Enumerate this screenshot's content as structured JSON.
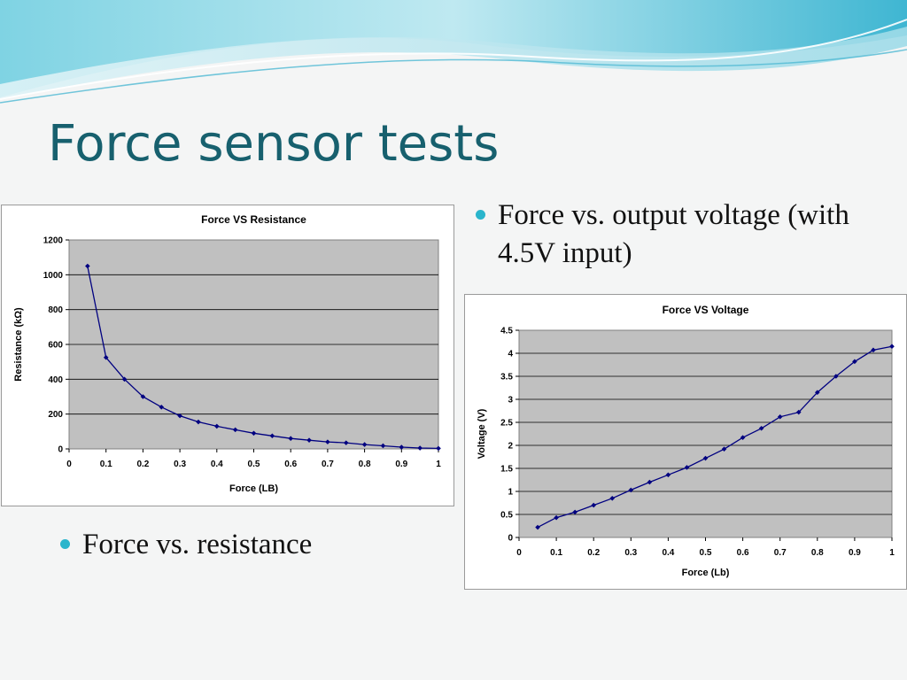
{
  "slide": {
    "title": "Force sensor tests",
    "bullets": {
      "voltage": "Force vs. output voltage (with 4.5V input)",
      "resistance": "Force vs. resistance"
    }
  },
  "colors": {
    "title": "#17606e",
    "bullet": "#2ab5cc",
    "plot_bg": "#c0c0c0",
    "series": "#000080"
  },
  "chart_data": [
    {
      "type": "line",
      "title": "Force VS Resistance",
      "xlabel": "Force (LB)",
      "ylabel": "Resistance (kΩ)",
      "xlim": [
        0,
        1
      ],
      "ylim": [
        0,
        1200
      ],
      "xticks": [
        "0",
        "0.1",
        "0.2",
        "0.3",
        "0.4",
        "0.5",
        "0.6",
        "0.7",
        "0.8",
        "0.9",
        "1"
      ],
      "yticks": [
        "0",
        "200",
        "400",
        "600",
        "800",
        "1000",
        "1200"
      ],
      "grid": true,
      "marker": "diamond",
      "series": [
        {
          "x": [
            0.05,
            0.1,
            0.15,
            0.2,
            0.25,
            0.3,
            0.35,
            0.4,
            0.45,
            0.5,
            0.55,
            0.6,
            0.65,
            0.7,
            0.75,
            0.8,
            0.85,
            0.9,
            0.95,
            1.0
          ],
          "y": [
            1050,
            525,
            400,
            300,
            240,
            190,
            155,
            130,
            110,
            90,
            75,
            60,
            50,
            40,
            35,
            25,
            18,
            10,
            5,
            3
          ]
        }
      ]
    },
    {
      "type": "line",
      "title": "Force VS Voltage",
      "xlabel": "Force (Lb)",
      "ylabel": "Voltage (V)",
      "xlim": [
        0,
        1
      ],
      "ylim": [
        0,
        4.5
      ],
      "xticks": [
        "0",
        "0.1",
        "0.2",
        "0.3",
        "0.4",
        "0.5",
        "0.6",
        "0.7",
        "0.8",
        "0.9",
        "1"
      ],
      "yticks": [
        "0",
        "0.5",
        "1",
        "1.5",
        "2",
        "2.5",
        "3",
        "3.5",
        "4",
        "4.5"
      ],
      "grid": true,
      "marker": "diamond",
      "series": [
        {
          "x": [
            0.05,
            0.1,
            0.15,
            0.2,
            0.25,
            0.3,
            0.35,
            0.4,
            0.45,
            0.5,
            0.55,
            0.6,
            0.65,
            0.7,
            0.75,
            0.8,
            0.85,
            0.9,
            0.95,
            1.0
          ],
          "y": [
            0.22,
            0.43,
            0.55,
            0.7,
            0.85,
            1.03,
            1.2,
            1.36,
            1.52,
            1.72,
            1.92,
            2.17,
            2.37,
            2.62,
            2.72,
            3.15,
            3.5,
            3.82,
            4.07,
            4.15
          ]
        }
      ]
    }
  ]
}
